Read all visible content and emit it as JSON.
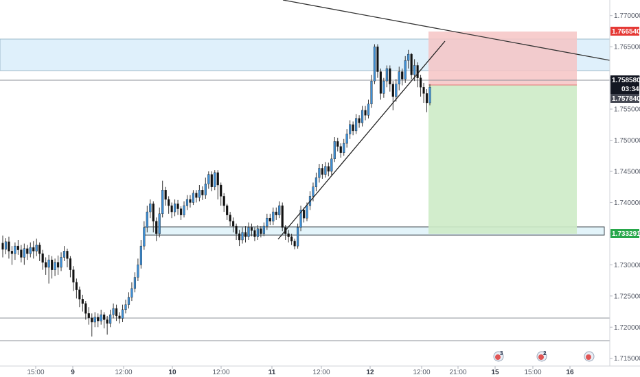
{
  "chart_data": {
    "type": "candlestick",
    "symbol_axis": {
      "ylim": [
        1.712,
        1.7725
      ],
      "y_ticks": [
        "1.770000",
        "1.765000",
        "1.760000",
        "1.755000",
        "1.750000",
        "1.745000",
        "1.740000",
        "1.735000",
        "1.730000",
        "1.725000",
        "1.720000",
        "1.715000"
      ],
      "x_ticks": [
        "15:00",
        "9",
        "12:00",
        "10",
        "12:00",
        "11",
        "12:00",
        "12",
        "12:00",
        "21:00",
        "15",
        "15:00",
        "16"
      ],
      "x_ticks_bold": [
        "9",
        "10",
        "11",
        "12",
        "15",
        "16"
      ]
    },
    "price_labels": {
      "stop_loss": "1.766540",
      "current": "1.758580",
      "countdown": "03:34",
      "entry": "1.757840",
      "take_profit": "1.733291"
    },
    "zones": {
      "supply_zone": [
        1.7601,
        1.7654
      ],
      "demand_zone": [
        1.7333,
        1.7348
      ],
      "position_stop": [
        1.7578,
        1.7665
      ],
      "position_target": [
        1.7333,
        1.7578
      ]
    },
    "horizontal_lines": [
      1.7586,
      1.7192,
      1.7155
    ],
    "trend_lines": [
      {
        "name": "descending resistance",
        "from": [
          "top-left",
          1.7725
        ],
        "to": [
          "right edge",
          1.7617
        ]
      },
      {
        "name": "ascending support",
        "from": [
          "11",
          1.7328
        ],
        "to": [
          "12 afternoon",
          1.7653
        ]
      }
    ],
    "candles": [
      [
        1.7335,
        1.7325,
        1.7347,
        1.7312
      ],
      [
        1.7325,
        1.7337,
        1.7343,
        1.7317
      ],
      [
        1.7337,
        1.7322,
        1.7345,
        1.731
      ],
      [
        1.7322,
        1.7318,
        1.733,
        1.73
      ],
      [
        1.7318,
        1.733,
        1.7336,
        1.7308
      ],
      [
        1.733,
        1.7324,
        1.734,
        1.7316
      ],
      [
        1.7324,
        1.7312,
        1.7332,
        1.7304
      ],
      [
        1.7312,
        1.7326,
        1.7334,
        1.73
      ],
      [
        1.7326,
        1.7318,
        1.7332,
        1.7308
      ],
      [
        1.7318,
        1.7328,
        1.7336,
        1.7312
      ],
      [
        1.7328,
        1.7322,
        1.7338,
        1.731
      ],
      [
        1.7322,
        1.7332,
        1.7342,
        1.7314
      ],
      [
        1.7332,
        1.7318,
        1.7336,
        1.7306
      ],
      [
        1.7318,
        1.7304,
        1.7324,
        1.7292
      ],
      [
        1.7304,
        1.7296,
        1.7312,
        1.7284
      ],
      [
        1.7296,
        1.7308,
        1.7316,
        1.727
      ],
      [
        1.7308,
        1.7292,
        1.7314,
        1.7278
      ],
      [
        1.7292,
        1.7304,
        1.731,
        1.7282
      ],
      [
        1.7304,
        1.7296,
        1.7315,
        1.7284
      ],
      [
        1.7296,
        1.7312,
        1.732,
        1.729
      ],
      [
        1.7312,
        1.7322,
        1.733,
        1.7306
      ],
      [
        1.7322,
        1.731,
        1.7326,
        1.7296
      ],
      [
        1.731,
        1.7292,
        1.7314,
        1.728
      ],
      [
        1.7292,
        1.7272,
        1.7298,
        1.7258
      ],
      [
        1.7272,
        1.726,
        1.7278,
        1.7246
      ],
      [
        1.726,
        1.7245,
        1.7265,
        1.7232
      ],
      [
        1.7245,
        1.7238,
        1.7252,
        1.7225
      ],
      [
        1.7238,
        1.7222,
        1.7242,
        1.7212
      ],
      [
        1.7222,
        1.7215,
        1.7232,
        1.7204
      ],
      [
        1.7215,
        1.7208,
        1.7222,
        1.7185
      ],
      [
        1.7208,
        1.7216,
        1.7224,
        1.72
      ],
      [
        1.7216,
        1.721,
        1.7222,
        1.72
      ],
      [
        1.721,
        1.722,
        1.7228,
        1.7204
      ],
      [
        1.722,
        1.7212,
        1.7224,
        1.7198
      ],
      [
        1.7212,
        1.7206,
        1.7218,
        1.7188
      ],
      [
        1.7206,
        1.722,
        1.7228,
        1.72
      ],
      [
        1.722,
        1.723,
        1.7238,
        1.7214
      ],
      [
        1.723,
        1.7218,
        1.7236,
        1.721
      ],
      [
        1.7218,
        1.7214,
        1.7224,
        1.7206
      ],
      [
        1.7214,
        1.7228,
        1.7236,
        1.7208
      ],
      [
        1.7228,
        1.7236,
        1.7244,
        1.7222
      ],
      [
        1.7236,
        1.7248,
        1.7256,
        1.723
      ],
      [
        1.7248,
        1.7262,
        1.7272,
        1.7242
      ],
      [
        1.7262,
        1.728,
        1.7288,
        1.7256
      ],
      [
        1.728,
        1.73,
        1.731,
        1.7274
      ],
      [
        1.73,
        1.733,
        1.734,
        1.7294
      ],
      [
        1.733,
        1.736,
        1.737,
        1.7324
      ],
      [
        1.736,
        1.7385,
        1.7395,
        1.7352
      ],
      [
        1.7385,
        1.7398,
        1.7405,
        1.7375
      ],
      [
        1.7398,
        1.737,
        1.7402,
        1.7352
      ],
      [
        1.737,
        1.735,
        1.7376,
        1.7338
      ],
      [
        1.735,
        1.7382,
        1.7392,
        1.7344
      ],
      [
        1.7382,
        1.742,
        1.7435,
        1.7376
      ],
      [
        1.742,
        1.7405,
        1.7425,
        1.7395
      ],
      [
        1.7405,
        1.7395,
        1.741,
        1.7382
      ],
      [
        1.7395,
        1.7385,
        1.74,
        1.7375
      ],
      [
        1.7385,
        1.7398,
        1.7405,
        1.7378
      ],
      [
        1.7398,
        1.739,
        1.7404,
        1.738
      ],
      [
        1.739,
        1.738,
        1.7394,
        1.7372
      ],
      [
        1.738,
        1.7395,
        1.7402,
        1.7376
      ],
      [
        1.7395,
        1.7405,
        1.7412,
        1.7388
      ],
      [
        1.7405,
        1.74,
        1.7412,
        1.7392
      ],
      [
        1.74,
        1.7415,
        1.742,
        1.7396
      ],
      [
        1.7415,
        1.7408,
        1.742,
        1.74
      ],
      [
        1.7408,
        1.742,
        1.7428,
        1.7402
      ],
      [
        1.742,
        1.7412,
        1.7426,
        1.7404
      ],
      [
        1.7412,
        1.743,
        1.744,
        1.7406
      ],
      [
        1.743,
        1.7445,
        1.745,
        1.7422
      ],
      [
        1.7445,
        1.7425,
        1.745,
        1.7418
      ],
      [
        1.7425,
        1.7448,
        1.7452,
        1.742
      ],
      [
        1.7448,
        1.7428,
        1.7452,
        1.7405
      ],
      [
        1.7428,
        1.741,
        1.7432,
        1.7395
      ],
      [
        1.741,
        1.7395,
        1.7415,
        1.7385
      ],
      [
        1.7395,
        1.738,
        1.7398,
        1.7372
      ],
      [
        1.738,
        1.737,
        1.7385,
        1.7362
      ],
      [
        1.737,
        1.7362,
        1.7376,
        1.7352
      ],
      [
        1.7362,
        1.735,
        1.7366,
        1.734
      ],
      [
        1.735,
        1.734,
        1.7356,
        1.733
      ],
      [
        1.734,
        1.7352,
        1.736,
        1.7334
      ],
      [
        1.7352,
        1.7345,
        1.7362,
        1.7336
      ],
      [
        1.7345,
        1.736,
        1.7368,
        1.734
      ],
      [
        1.736,
        1.7355,
        1.7366,
        1.7346
      ],
      [
        1.7355,
        1.7345,
        1.736,
        1.7338
      ],
      [
        1.7345,
        1.7358,
        1.7364,
        1.734
      ],
      [
        1.7358,
        1.735,
        1.7362,
        1.7344
      ],
      [
        1.735,
        1.7362,
        1.7368,
        1.7346
      ],
      [
        1.7362,
        1.7375,
        1.7382,
        1.7356
      ],
      [
        1.7375,
        1.737,
        1.7382,
        1.7364
      ],
      [
        1.737,
        1.7385,
        1.7392,
        1.7364
      ],
      [
        1.7385,
        1.738,
        1.7392,
        1.7372
      ],
      [
        1.738,
        1.7395,
        1.7402,
        1.7375
      ],
      [
        1.7395,
        1.736,
        1.74,
        1.7354
      ],
      [
        1.736,
        1.735,
        1.7364,
        1.734
      ],
      [
        1.735,
        1.7345,
        1.7356,
        1.7336
      ],
      [
        1.7345,
        1.7338,
        1.735,
        1.7332
      ],
      [
        1.7338,
        1.733,
        1.7342,
        1.7325
      ],
      [
        1.733,
        1.736,
        1.7366,
        1.7326
      ],
      [
        1.736,
        1.7388,
        1.7395,
        1.7354
      ],
      [
        1.7388,
        1.7375,
        1.7392,
        1.7368
      ],
      [
        1.7375,
        1.7395,
        1.74,
        1.737
      ],
      [
        1.7395,
        1.741,
        1.7418,
        1.7388
      ],
      [
        1.741,
        1.7425,
        1.7432,
        1.7402
      ],
      [
        1.7425,
        1.744,
        1.7448,
        1.7418
      ],
      [
        1.744,
        1.7455,
        1.7462,
        1.7432
      ],
      [
        1.7455,
        1.7445,
        1.7462,
        1.7438
      ],
      [
        1.7445,
        1.7458,
        1.7465,
        1.744
      ],
      [
        1.7458,
        1.745,
        1.7464,
        1.7442
      ],
      [
        1.745,
        1.747,
        1.7478,
        1.7444
      ],
      [
        1.747,
        1.7498,
        1.7505,
        1.7465
      ],
      [
        1.7498,
        1.749,
        1.7504,
        1.7482
      ],
      [
        1.749,
        1.748,
        1.7495,
        1.7472
      ],
      [
        1.748,
        1.7495,
        1.7502,
        1.7475
      ],
      [
        1.7495,
        1.751,
        1.7518,
        1.7488
      ],
      [
        1.751,
        1.7525,
        1.7532,
        1.7502
      ],
      [
        1.7525,
        1.7515,
        1.753,
        1.7508
      ],
      [
        1.7515,
        1.7535,
        1.7542,
        1.751
      ],
      [
        1.7535,
        1.7528,
        1.754,
        1.752
      ],
      [
        1.7528,
        1.7548,
        1.7555,
        1.7522
      ],
      [
        1.7548,
        1.754,
        1.7555,
        1.7532
      ],
      [
        1.754,
        1.7558,
        1.7565,
        1.7535
      ],
      [
        1.7558,
        1.7595,
        1.7605,
        1.7552
      ],
      [
        1.7595,
        1.765,
        1.7654,
        1.759
      ],
      [
        1.765,
        1.761,
        1.7654,
        1.76
      ],
      [
        1.761,
        1.7575,
        1.7615,
        1.7565
      ],
      [
        1.7575,
        1.7595,
        1.76,
        1.7568
      ],
      [
        1.7595,
        1.7615,
        1.762,
        1.7585
      ],
      [
        1.7615,
        1.759,
        1.762,
        1.7578
      ],
      [
        1.759,
        1.757,
        1.7595,
        1.7548
      ],
      [
        1.757,
        1.759,
        1.7598,
        1.7562
      ],
      [
        1.759,
        1.761,
        1.7618,
        1.758
      ],
      [
        1.761,
        1.7598,
        1.7615,
        1.7588
      ],
      [
        1.7598,
        1.7628,
        1.7635,
        1.7592
      ],
      [
        1.7628,
        1.7638,
        1.7645,
        1.7615
      ],
      [
        1.7638,
        1.7605,
        1.764,
        1.7598
      ],
      [
        1.7605,
        1.762,
        1.763,
        1.7595
      ],
      [
        1.762,
        1.76,
        1.7625,
        1.7585
      ],
      [
        1.76,
        1.7585,
        1.7605,
        1.757
      ],
      [
        1.7585,
        1.7575,
        1.7592,
        1.756
      ],
      [
        1.7575,
        1.756,
        1.7582,
        1.7545
      ],
      [
        1.756,
        1.7585,
        1.759,
        1.7556
      ]
    ]
  },
  "colors": {
    "bull": "#3d8fd6",
    "bear": "#111111",
    "supply_zone": "#dff0fb",
    "demand_zone": "#e3f4fa",
    "stop_zone": "#f6c4c4",
    "target_zone": "#cdebc7",
    "stop_label": "#e53935",
    "entry_label": "#434651",
    "current_label": "#131722",
    "target_label": "#27a74a"
  },
  "icons": [
    "event-icon-3",
    "event-icon-2",
    "event-icon-1"
  ],
  "event_counts": [
    "3",
    "2"
  ]
}
